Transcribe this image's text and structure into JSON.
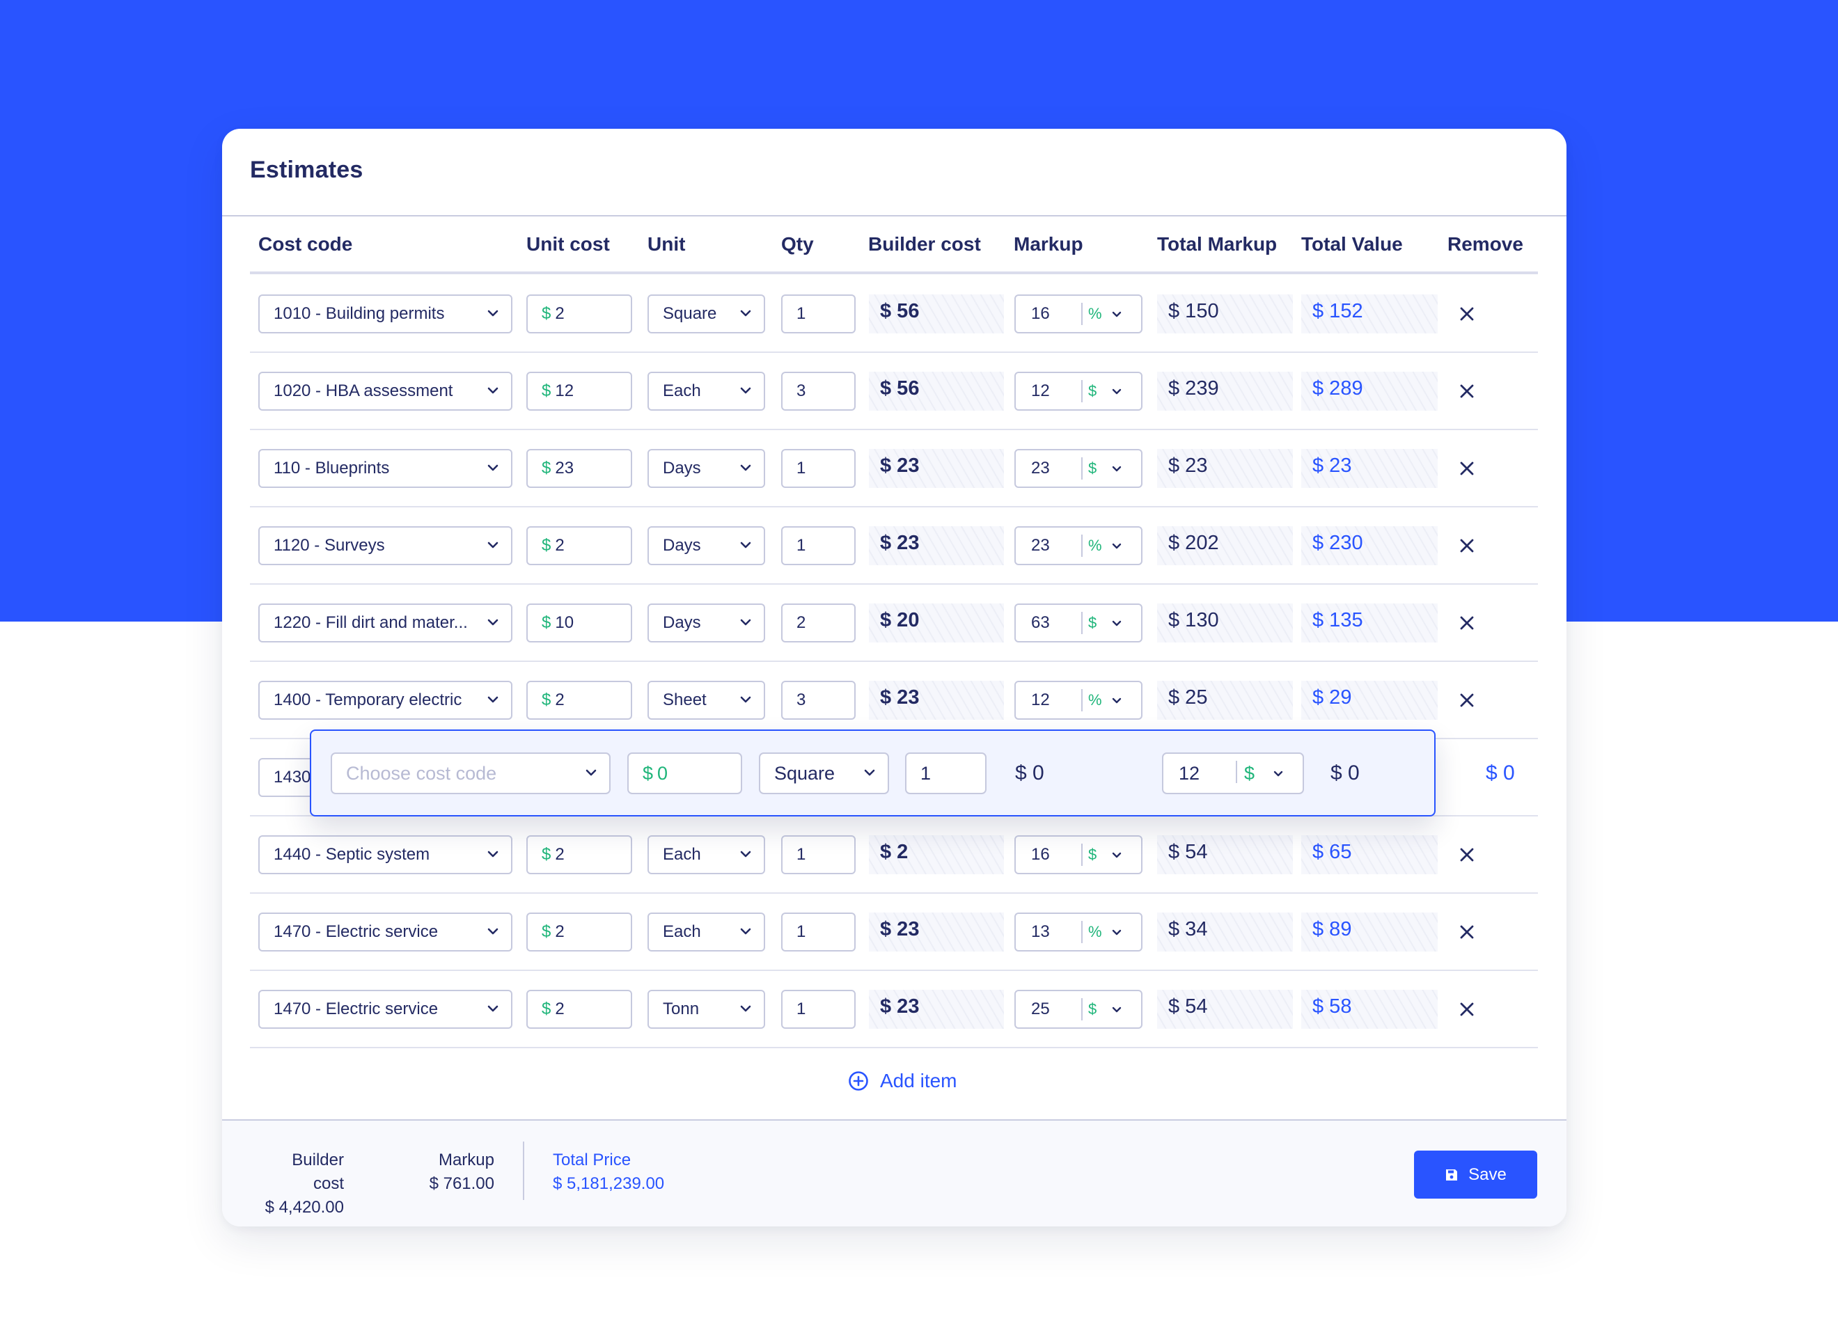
{
  "card": {
    "title": "Estimates"
  },
  "columns": {
    "cost_code": "Cost code",
    "unit_cost": "Unit cost",
    "unit": "Unit",
    "qty": "Qty",
    "builder_cost": "Builder cost",
    "markup": "Markup",
    "total_markup": "Total Markup",
    "total_value": "Total Value",
    "remove": "Remove"
  },
  "rows": [
    {
      "cost_code": "1010 - Building permits",
      "unit_cost": "2",
      "unit": "Square",
      "qty": "1",
      "builder_cost": "$ 56",
      "markup": "16",
      "markup_type": "%",
      "total_markup": "$ 150",
      "total_value": "$ 152"
    },
    {
      "cost_code": "1020 - HBA assessment",
      "unit_cost": "12",
      "unit": "Each",
      "qty": "3",
      "builder_cost": "$ 56",
      "markup": "12",
      "markup_type": "$",
      "total_markup": "$ 239",
      "total_value": "$ 289"
    },
    {
      "cost_code": "110 - Blueprints",
      "unit_cost": "23",
      "unit": "Days",
      "qty": "1",
      "builder_cost": "$ 23",
      "markup": "23",
      "markup_type": "$",
      "total_markup": "$ 23",
      "total_value": "$ 23"
    },
    {
      "cost_code": "1120 - Surveys",
      "unit_cost": "2",
      "unit": "Days",
      "qty": "1",
      "builder_cost": "$ 23",
      "markup": "23",
      "markup_type": "%",
      "total_markup": "$ 202",
      "total_value": "$ 230"
    },
    {
      "cost_code": "1220 - Fill dirt and mater...",
      "unit_cost": "10",
      "unit": "Days",
      "qty": "2",
      "builder_cost": "$ 20",
      "markup": "63",
      "markup_type": "$",
      "total_markup": "$ 130",
      "total_value": "$ 135"
    },
    {
      "cost_code": "1400 - Temporary electric",
      "unit_cost": "2",
      "unit": "Sheet",
      "qty": "3",
      "builder_cost": "$ 23",
      "markup": "12",
      "markup_type": "%",
      "total_markup": "$ 25",
      "total_value": "$ 29"
    },
    {
      "cost_code": "1430",
      "unit_cost": "",
      "unit": "",
      "qty": "",
      "builder_cost": "",
      "markup": "",
      "markup_type": "",
      "total_markup": "",
      "total_value": ""
    },
    {
      "cost_code": "1440 - Septic system",
      "unit_cost": "2",
      "unit": "Each",
      "qty": "1",
      "builder_cost": "$ 2",
      "markup": "16",
      "markup_type": "$",
      "total_markup": "$ 54",
      "total_value": "$ 65"
    },
    {
      "cost_code": "1470 - Electric service",
      "unit_cost": "2",
      "unit": "Each",
      "qty": "1",
      "builder_cost": "$ 23",
      "markup": "13",
      "markup_type": "%",
      "total_markup": "$ 34",
      "total_value": "$ 89"
    },
    {
      "cost_code": "1470 - Electric service",
      "unit_cost": "2",
      "unit": "Tonn",
      "qty": "1",
      "builder_cost": "$ 23",
      "markup": "25",
      "markup_type": "$",
      "total_markup": "$ 54",
      "total_value": "$ 58"
    }
  ],
  "currency_symbol": "$",
  "dragging_row": {
    "cost_code_placeholder": "Choose cost code",
    "unit_cost": "0",
    "unit": "Square",
    "qty": "1",
    "builder_cost": "$ 0",
    "markup": "12",
    "markup_type": "$",
    "total_markup": "$ 0",
    "total_value": "$ 0"
  },
  "actions": {
    "add_item": "Add item",
    "save": "Save"
  },
  "summary": {
    "builder_cost_label": "Builder cost",
    "builder_cost_value": "$ 4,420.00",
    "markup_label": "Markup",
    "markup_value": "$ 761.00",
    "total_price_label": "Total Price",
    "total_price_value": "$ 5,181,239.00"
  },
  "colors": {
    "brand_blue": "#2954ff",
    "text_navy": "#232a63",
    "currency_green": "#1fb57a",
    "border": "#c6c9de"
  }
}
